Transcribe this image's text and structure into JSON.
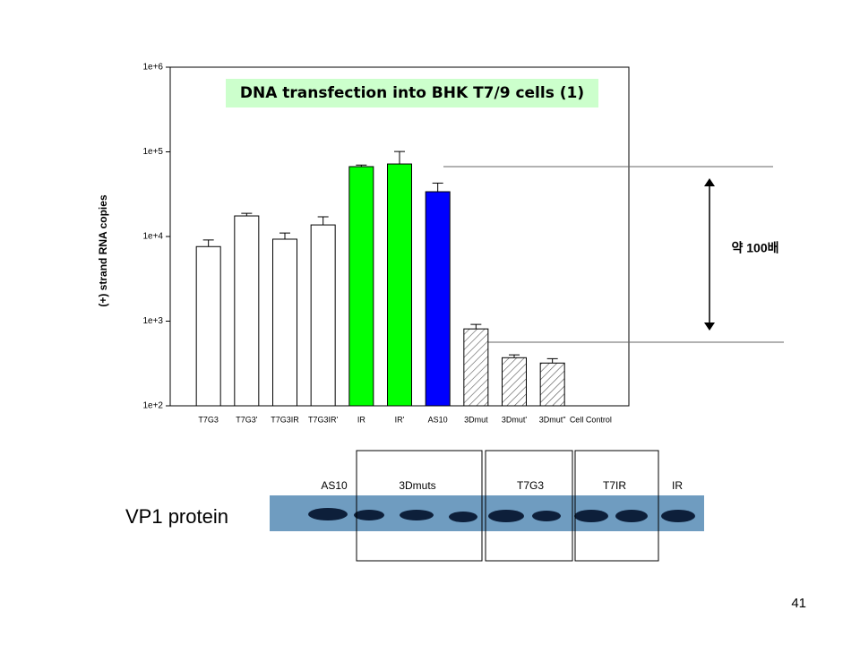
{
  "chart_data": {
    "type": "bar",
    "title": "DNA transfection into BHK T7/9 cells (1)",
    "y_label": "(+) strand RNA copies",
    "categories": [
      "T7G3",
      "T7G3'",
      "T7G3IR",
      "T7G3IR'",
      "IR",
      "IR'",
      "AS10",
      "3Dmut",
      "3Dmut'",
      "3Dmut''",
      "Cell Control"
    ],
    "values": [
      7600,
      17500,
      9300,
      13700,
      66900,
      71900,
      33800,
      810,
      370,
      320,
      null
    ],
    "errors": [
      1500,
      1300,
      1700,
      3400,
      3000,
      29000,
      9000,
      105,
      30,
      40,
      null
    ],
    "colors": [
      "#ffffff",
      "#ffffff",
      "#ffffff",
      "#ffffff",
      "#00ff00",
      "#00ff00",
      "#0000ff",
      "hatch",
      "hatch",
      "hatch",
      "#ffffff"
    ],
    "log_scale": true,
    "ylim": [
      100,
      1000000
    ],
    "yticks": [
      {
        "value": 100,
        "label": "1e+2"
      },
      {
        "value": 1000,
        "label": "1e+3"
      },
      {
        "value": 10000,
        "label": "1e+4"
      },
      {
        "value": 100000,
        "label": "1e+5"
      },
      {
        "value": 1000000,
        "label": "1e+6"
      }
    ],
    "annotation": "약 100배"
  },
  "blot": {
    "title": "VP1 protein",
    "labels": [
      "AS10",
      "3Dmuts",
      "T7G3",
      "T7IR",
      "IR"
    ]
  },
  "page_number": "41"
}
